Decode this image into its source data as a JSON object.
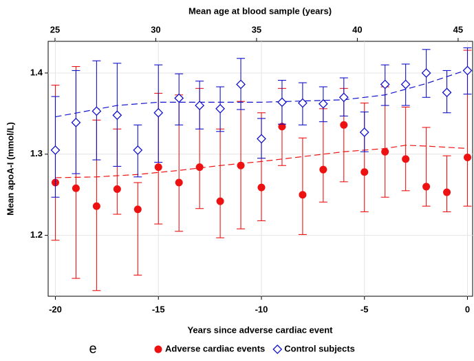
{
  "chart_data": {
    "type": "errorbar",
    "xlabel": "Years since adverse cardiac event",
    "x2label": "Mean age at blood sample (years)",
    "ylabel": "Mean apoA-I (mmol/L)",
    "panel_label": "e",
    "x": [
      -20,
      -19,
      -18,
      -17,
      -16,
      -15,
      -14,
      -13,
      -12,
      -11,
      -10,
      -9,
      -8,
      -7,
      -6,
      -5,
      -4,
      -3,
      -2,
      -1,
      0
    ],
    "xlim": [
      -20.35,
      0.25
    ],
    "xticks": [
      -20,
      -15,
      -10,
      -5,
      0
    ],
    "x2lim": [
      24.66,
      45.72
    ],
    "x2ticks": [
      25,
      30,
      35,
      40,
      45
    ],
    "ylim": [
      1.125,
      1.439
    ],
    "yticks": [
      1.2,
      1.3,
      1.4
    ],
    "grid": true,
    "series": [
      {
        "name": "Adverse cardiac events",
        "color": "#ee1111",
        "marker": "circle",
        "values": [
          1.265,
          1.258,
          1.236,
          1.257,
          1.232,
          1.284,
          1.265,
          1.284,
          1.242,
          1.286,
          1.259,
          1.334,
          1.25,
          1.281,
          1.336,
          1.278,
          1.303,
          1.294,
          1.26,
          1.253,
          1.296
        ],
        "upper": [
          1.385,
          1.408,
          1.342,
          1.331,
          1.265,
          1.375,
          1.373,
          1.381,
          1.331,
          1.365,
          1.351,
          1.381,
          1.32,
          1.356,
          1.381,
          1.363,
          1.383,
          1.358,
          1.333,
          1.298,
          1.428
        ],
        "lower": [
          1.194,
          1.147,
          1.132,
          1.226,
          1.151,
          1.214,
          1.205,
          1.233,
          1.197,
          1.208,
          1.218,
          1.286,
          1.201,
          1.241,
          1.266,
          1.229,
          1.247,
          1.255,
          1.236,
          1.229,
          1.236
        ],
        "fit_x": [
          -20,
          -18,
          -16,
          -14,
          -12,
          -10,
          -8,
          -6,
          -4,
          -3,
          -2,
          0
        ],
        "fit_values": [
          1.271,
          1.272,
          1.275,
          1.28,
          1.286,
          1.291,
          1.297,
          1.303,
          1.307,
          1.311,
          1.31,
          1.307
        ]
      },
      {
        "name": "Control subjects",
        "color": "#1111cc",
        "marker": "diamond",
        "values": [
          1.305,
          1.339,
          1.353,
          1.348,
          1.305,
          1.351,
          1.369,
          1.36,
          1.356,
          1.386,
          1.319,
          1.364,
          1.363,
          1.362,
          1.37,
          1.327,
          1.386,
          1.386,
          1.4,
          1.376,
          1.403
        ],
        "upper": [
          1.371,
          1.403,
          1.415,
          1.412,
          1.336,
          1.41,
          1.399,
          1.39,
          1.383,
          1.418,
          1.344,
          1.391,
          1.388,
          1.383,
          1.394,
          1.352,
          1.41,
          1.411,
          1.429,
          1.403,
          1.431
        ],
        "lower": [
          1.247,
          1.276,
          1.293,
          1.285,
          1.272,
          1.29,
          1.336,
          1.331,
          1.328,
          1.355,
          1.295,
          1.337,
          1.336,
          1.34,
          1.347,
          1.303,
          1.36,
          1.36,
          1.37,
          1.351,
          1.374
        ],
        "fit_x": [
          -20,
          -17,
          -15,
          -10,
          -6,
          -4,
          -2,
          0
        ],
        "fit_values": [
          1.346,
          1.36,
          1.364,
          1.364,
          1.367,
          1.373,
          1.387,
          1.404
        ]
      }
    ]
  }
}
